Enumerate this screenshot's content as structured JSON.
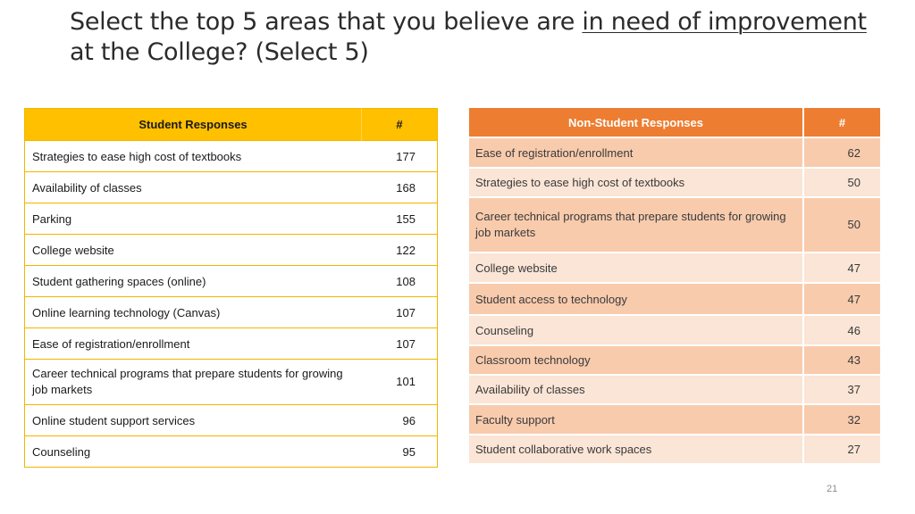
{
  "title": {
    "before": "Select the top 5 areas that you believe are ",
    "underlined": "in need of improvement",
    "after": " at the College? (Select 5)"
  },
  "student_table": {
    "header_label": "Student Responses",
    "header_count": "#",
    "rows": [
      {
        "label": "Strategies to ease high cost of textbooks",
        "count": "177"
      },
      {
        "label": "Availability of classes",
        "count": "168"
      },
      {
        "label": "Parking",
        "count": "155"
      },
      {
        "label": "College website",
        "count": "122"
      },
      {
        "label": "Student gathering spaces (online)",
        "count": "108"
      },
      {
        "label": "Online learning technology (Canvas)",
        "count": "107"
      },
      {
        "label": "Ease of registration/enrollment",
        "count": "107"
      },
      {
        "label": "Career technical programs that prepare students for growing job markets",
        "count": "101"
      },
      {
        "label": "Online student support services",
        "count": "96"
      },
      {
        "label": "Counseling",
        "count": "95"
      }
    ]
  },
  "nonstudent_table": {
    "header_label": "Non-Student Responses",
    "header_count": "#",
    "rows": [
      {
        "label": "Ease of registration/enrollment",
        "count": "62"
      },
      {
        "label": "Strategies to ease high cost of textbooks",
        "count": "50"
      },
      {
        "label": "Career technical programs that prepare students for growing job markets",
        "count": "50"
      },
      {
        "label": "College website",
        "count": "47"
      },
      {
        "label": "Student access to technology",
        "count": "47"
      },
      {
        "label": "Counseling",
        "count": "46"
      },
      {
        "label": "Classroom technology",
        "count": "43"
      },
      {
        "label": "Availability of classes",
        "count": "37"
      },
      {
        "label": "Faculty support",
        "count": "32"
      },
      {
        "label": "Student collaborative work spaces",
        "count": "27"
      }
    ]
  },
  "page_number": "21",
  "colors": {
    "student_header": "#ffc000",
    "nonstudent_header": "#ed7d31",
    "nonstudent_row_dark": "#f8cbad",
    "nonstudent_row_light": "#fbe5d6"
  }
}
